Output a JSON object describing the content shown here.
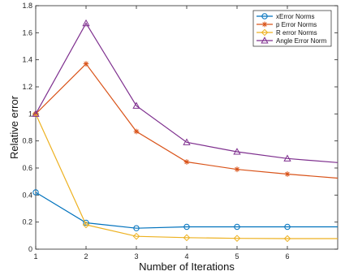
{
  "chart_data": {
    "type": "line",
    "xlabel": "Number of Iterations",
    "ylabel": "Relative error",
    "xlim": [
      1,
      7
    ],
    "ylim": [
      0,
      1.8
    ],
    "xticks": [
      1,
      2,
      3,
      4,
      5,
      6
    ],
    "yticks": [
      0,
      0.2,
      0.4,
      0.6,
      0.8,
      1,
      1.2,
      1.4,
      1.6,
      1.8
    ],
    "x": [
      1,
      2,
      3,
      4,
      5,
      6,
      7
    ],
    "grid": false,
    "legend_position": "top-right",
    "series": [
      {
        "name": "xError Norms",
        "color": "#0072bd",
        "marker": "circle",
        "values": [
          0.42,
          0.195,
          0.155,
          0.165,
          0.165,
          0.165,
          0.165
        ]
      },
      {
        "name": "p Error Norms",
        "color": "#d95319",
        "marker": "asterisk",
        "values": [
          1.0,
          1.37,
          0.87,
          0.645,
          0.59,
          0.555,
          0.525
        ]
      },
      {
        "name": "R error Norms",
        "color": "#edb120",
        "marker": "diamond",
        "values": [
          1.0,
          0.18,
          0.095,
          0.085,
          0.08,
          0.078,
          0.078
        ]
      },
      {
        "name": "Angle Error Norm",
        "color": "#7e2f8e",
        "marker": "triangle",
        "values": [
          1.0,
          1.67,
          1.06,
          0.79,
          0.72,
          0.67,
          0.64
        ]
      }
    ]
  }
}
